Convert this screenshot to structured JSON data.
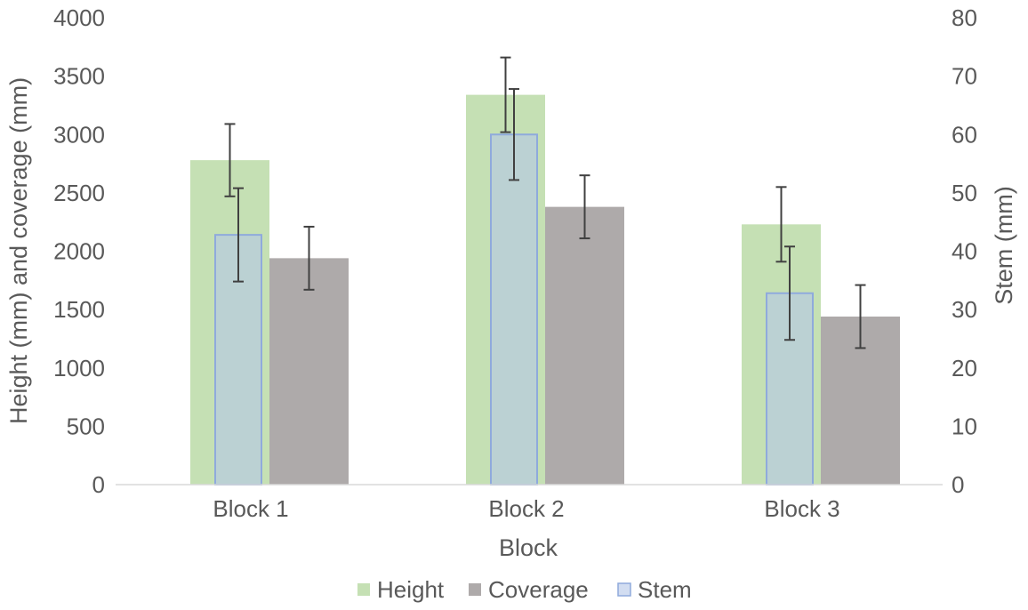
{
  "chart_data": {
    "type": "bar",
    "xlabel": "Block",
    "ylabel": "Height (mm) and coverage (mm)",
    "y2label": "Stem (mm)",
    "categories": [
      "Block 1",
      "Block 2",
      "Block 3"
    ],
    "ylim": [
      0,
      4000
    ],
    "yticks": [
      0,
      500,
      1000,
      1500,
      2000,
      2500,
      3000,
      3500,
      4000
    ],
    "y2lim": [
      0,
      80
    ],
    "y2ticks": [
      0,
      10,
      20,
      30,
      40,
      50,
      60,
      70,
      80
    ],
    "grid": false,
    "legend_position": "bottom",
    "series": [
      {
        "name": "Height",
        "axis": "left",
        "color": "#c5e0b4",
        "values": [
          2780,
          3340,
          2230
        ],
        "error": [
          310,
          320,
          320
        ]
      },
      {
        "name": "Coverage",
        "axis": "left",
        "color": "#aeaaaa",
        "values": [
          1940,
          2380,
          1440
        ],
        "error": [
          270,
          270,
          270
        ]
      },
      {
        "name": "Stem",
        "axis": "right",
        "color": "#b4c7e7",
        "edge": "#8faadc",
        "values": [
          42.8,
          60.0,
          32.8
        ],
        "error": [
          8.0,
          7.8,
          8.0
        ]
      }
    ]
  }
}
